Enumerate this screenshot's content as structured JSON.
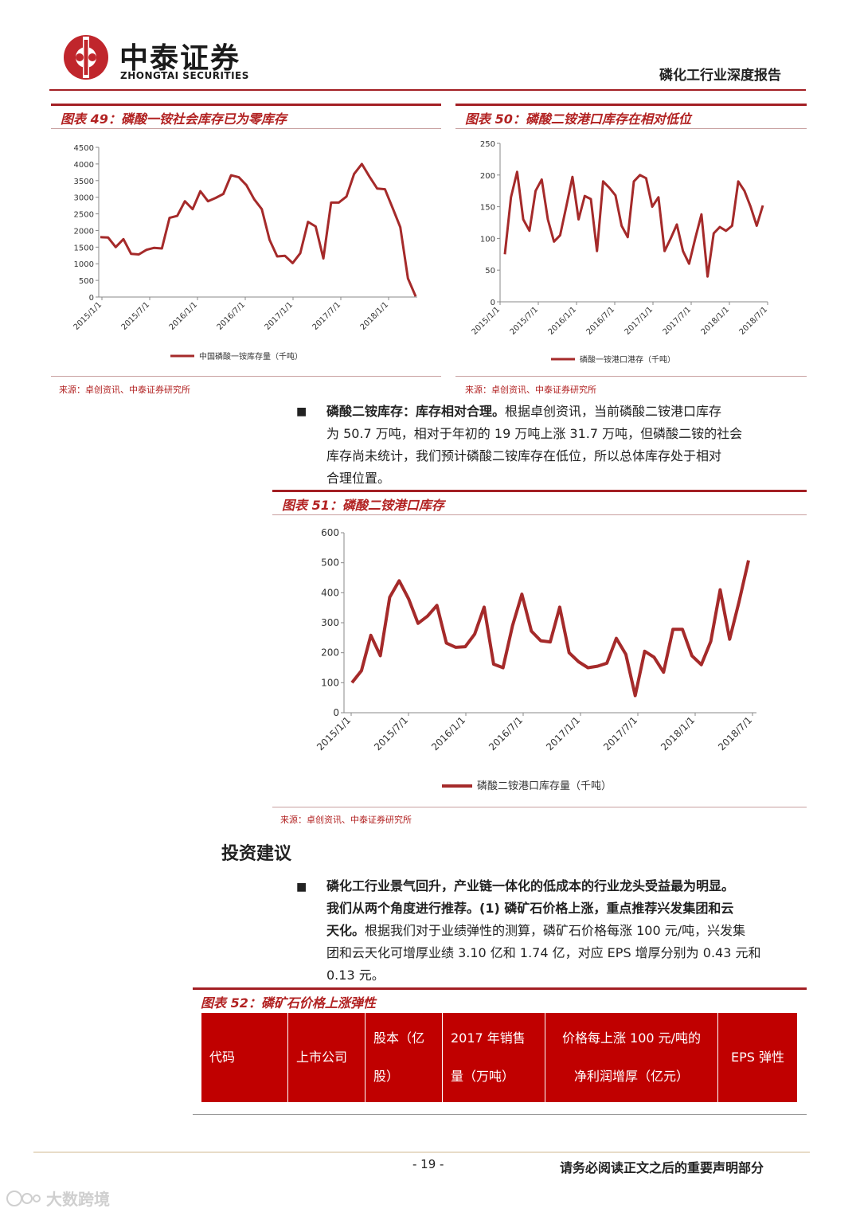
{
  "header": {
    "brand_cn": "中泰证券",
    "brand_en": "ZHONGTAI SECURITIES",
    "report_title": "磷化工行业深度报告"
  },
  "charts": {
    "c49": {
      "title": "图表 49：磷酸一铵社会库存已为零库存",
      "source": "来源：卓创资讯、中泰证券研究所",
      "legend": "中国磷酸一铵库存量（千吨）"
    },
    "c50": {
      "title": "图表 50：磷酸二铵港口库存在相对低位",
      "source": "来源：卓创资讯、中泰证券研究所",
      "legend": "磷酸一铵港口港存（千吨）"
    },
    "c51": {
      "title": "图表 51：磷酸二铵港口库存",
      "source": "来源：卓创资讯、中泰证券研究所",
      "legend": "磷酸二铵港口库存量（千吨）"
    }
  },
  "chart_data": [
    {
      "type": "line",
      "color": "#a52a2a",
      "yticks": [
        0,
        500,
        1000,
        1500,
        2000,
        2500,
        3000,
        3500,
        4000,
        4500
      ],
      "ylim": [
        0,
        4500
      ],
      "xticks": [
        "2015/1/1",
        "2015/7/1",
        "2016/1/1",
        "2016/7/1",
        "2017/1/1",
        "2017/7/1",
        "2018/1/1"
      ],
      "series": [
        {
          "name": "中国磷酸一铵库存量（千吨）",
          "values": [
            1800,
            1790,
            1500,
            1740,
            1300,
            1280,
            1420,
            1480,
            1460,
            2380,
            2440,
            2880,
            2640,
            3180,
            2880,
            2980,
            3100,
            3660,
            3600,
            3360,
            2940,
            2640,
            1720,
            1220,
            1240,
            1020,
            1320,
            2260,
            2120,
            1160,
            2840,
            2840,
            3020,
            3700,
            4000,
            3620,
            3260,
            3240,
            2680,
            2100,
            560,
            20
          ]
        }
      ]
    },
    {
      "type": "line",
      "color": "#a52a2a",
      "yticks": [
        0,
        50,
        100,
        150,
        200,
        250
      ],
      "ylim": [
        0,
        250
      ],
      "xticks": [
        "2015/1/1",
        "2015/7/1",
        "2016/1/1",
        "2016/7/1",
        "2017/1/1",
        "2017/7/1",
        "2018/1/1",
        "2018/7/1"
      ],
      "series": [
        {
          "name": "磷酸一铵港口港存（千吨）",
          "values": [
            75,
            165,
            205,
            130,
            112,
            175,
            193,
            130,
            95,
            105,
            150,
            197,
            130,
            167,
            162,
            80,
            190,
            180,
            168,
            120,
            102,
            190,
            200,
            195,
            150,
            165,
            80,
            100,
            122,
            80,
            60,
            100,
            138,
            40,
            108,
            118,
            112,
            120,
            190,
            175,
            150,
            120,
            152
          ]
        }
      ]
    },
    {
      "type": "line",
      "color": "#a52a2a",
      "yticks": [
        0,
        100,
        200,
        300,
        400,
        500,
        600
      ],
      "ylim": [
        0,
        600
      ],
      "xticks": [
        "2015/1/1",
        "2015/7/1",
        "2016/1/1",
        "2016/7/1",
        "2017/1/1",
        "2017/7/1",
        "2018/1/1",
        "2018/7/1"
      ],
      "series": [
        {
          "name": "磷酸二铵港口库存量（千吨）",
          "values": [
            100,
            140,
            258,
            190,
            385,
            440,
            380,
            298,
            322,
            358,
            232,
            218,
            220,
            262,
            352,
            162,
            150,
            290,
            395,
            272,
            240,
            236,
            352,
            200,
            170,
            150,
            155,
            165,
            248,
            195,
            57,
            205,
            185,
            135,
            278,
            278,
            190,
            160,
            238,
            410,
            245,
            370,
            508
          ]
        }
      ]
    }
  ],
  "para1": {
    "bold": "磷酸二铵库存：库存相对合理。",
    "line1": "根据卓创资讯，当前磷酸二铵港口库存",
    "line2": "为 50.7 万吨，相对于年初的 19 万吨上涨 31.7 万吨，但磷酸二铵的社会",
    "line3": "库存尚未统计，我们预计磷酸二铵库存在低位，所以总体库存处于相对",
    "line4": "合理位置。"
  },
  "section": {
    "heading": "投资建议"
  },
  "para2": {
    "line1": "磷化工行业景气回升，产业链一体化的低成本的行业龙头受益最为明显。",
    "line2": "我们从两个角度进行推荐。(1) 磷矿石价格上涨，重点推荐兴发集团和云",
    "line3_bold": "天化。",
    "line3_rest": "根据我们对于业绩弹性的测算，磷矿石价格每涨 100 元/吨，兴发集",
    "line4": "团和云天化可增厚业绩 3.10 亿和 1.74 亿，对应 EPS 增厚分别为 0.43 元和",
    "line5": "0.13 元。"
  },
  "table52": {
    "title": "图表 52：磷矿石价格上涨弹性",
    "headers": {
      "code": "代码",
      "company": "上市公司",
      "shares_l1": "股本（亿",
      "shares_l2": "股）",
      "sales_l1": "2017 年销售",
      "sales_l2": "量（万吨）",
      "profit_l1": "价格每上涨 100 元/吨的",
      "profit_l2": "净利润增厚（亿元）",
      "eps": "EPS 弹性"
    }
  },
  "footer": {
    "page": "- 19 -",
    "disclaimer": "请务必阅读正文之后的重要声明部分",
    "watermark": "大数跨境"
  },
  "colors": {
    "accent": "#a31f24",
    "series": "#a52a2a",
    "table_bg": "#c00000"
  }
}
